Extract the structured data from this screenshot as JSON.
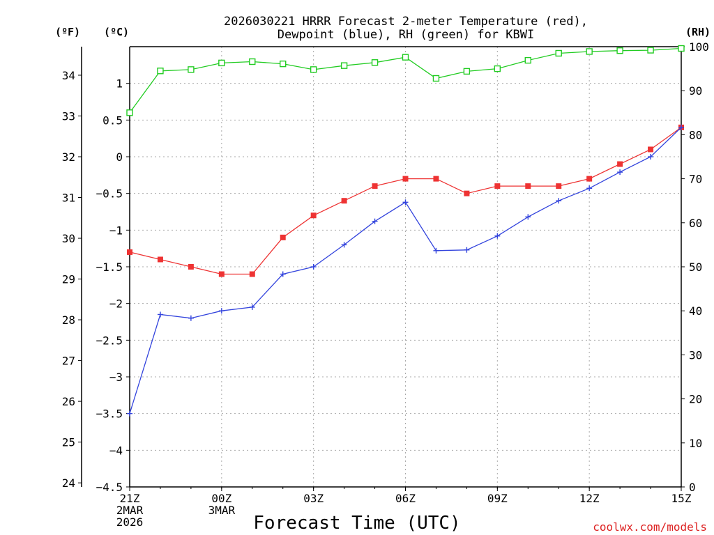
{
  "chart_data": {
    "type": "line",
    "title_line1": "2026030221 HRRR Forecast 2-meter Temperature (red),",
    "title_line2": "Dewpoint (blue), RH (green) for KBWI",
    "unit_left_f": "(ºF)",
    "unit_left_c": "(ºC)",
    "unit_right": "(RH)",
    "xlabel": "Forecast Time (UTC)",
    "watermark": "coolwx.com/models",
    "x_ticks": [
      {
        "i": 0,
        "lines": [
          "21Z",
          "2MAR",
          "2026"
        ]
      },
      {
        "i": 3,
        "lines": [
          "00Z",
          "3MAR"
        ]
      },
      {
        "i": 6,
        "lines": [
          "03Z"
        ]
      },
      {
        "i": 9,
        "lines": [
          "06Z"
        ]
      },
      {
        "i": 12,
        "lines": [
          "09Z"
        ]
      },
      {
        "i": 15,
        "lines": [
          "12Z"
        ]
      },
      {
        "i": 18,
        "lines": [
          "15Z"
        ]
      }
    ],
    "c_ylim": [
      -4.5,
      1.5
    ],
    "c_ticks": [
      -4.5,
      -4,
      -3.5,
      -3,
      -2.5,
      -2,
      -1.5,
      -1,
      -0.5,
      0,
      0.5,
      1
    ],
    "f_ticks": [
      24,
      25,
      26,
      27,
      28,
      29,
      30,
      31,
      32,
      33,
      34
    ],
    "rh_ylim": [
      0,
      100
    ],
    "rh_ticks": [
      0,
      10,
      20,
      30,
      40,
      50,
      60,
      70,
      80,
      90,
      100
    ],
    "grid": true,
    "series": [
      {
        "name": "Temperature",
        "axis": "c",
        "color": "#ee3333",
        "marker": "filled-square",
        "values": [
          -1.3,
          -1.4,
          -1.5,
          -1.6,
          -1.6,
          -1.1,
          -0.8,
          -0.6,
          -0.4,
          -0.3,
          -0.3,
          -0.5,
          -0.4,
          -0.4,
          -0.4,
          -0.3,
          -0.1,
          0.1,
          0.4
        ]
      },
      {
        "name": "Dewpoint",
        "axis": "c",
        "color": "#3344dd",
        "marker": "plus",
        "values": [
          -3.5,
          -2.15,
          -2.2,
          -2.1,
          -2.05,
          -1.6,
          -1.5,
          -1.2,
          -0.88,
          -0.62,
          -1.28,
          -1.27,
          -1.08,
          -0.82,
          -0.6,
          -0.43,
          -0.21,
          0.0,
          0.4
        ]
      },
      {
        "name": "RH",
        "axis": "rh",
        "color": "#22cc22",
        "marker": "open-square",
        "values": [
          85,
          94.5,
          94.8,
          96.3,
          96.6,
          96.1,
          94.8,
          95.7,
          96.4,
          97.6,
          92.8,
          94.4,
          95.0,
          96.9,
          98.5,
          98.9,
          99.1,
          99.2,
          99.6
        ]
      }
    ]
  }
}
